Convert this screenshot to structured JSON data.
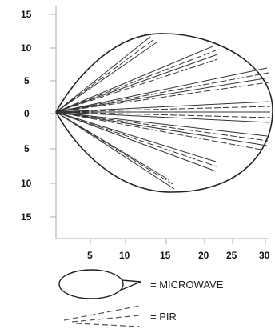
{
  "diagram": {
    "y_ticks": [
      "15",
      "10",
      "5",
      "0",
      "5",
      "10",
      "15"
    ],
    "x_ticks": [
      "5",
      "10",
      "15",
      "20",
      "25",
      "30"
    ],
    "legend": {
      "microwave_label": "= MICROWAVE",
      "pir_label": "= PIR"
    },
    "colors": {
      "line": "#222222",
      "axis": "#aaaaaa"
    }
  }
}
